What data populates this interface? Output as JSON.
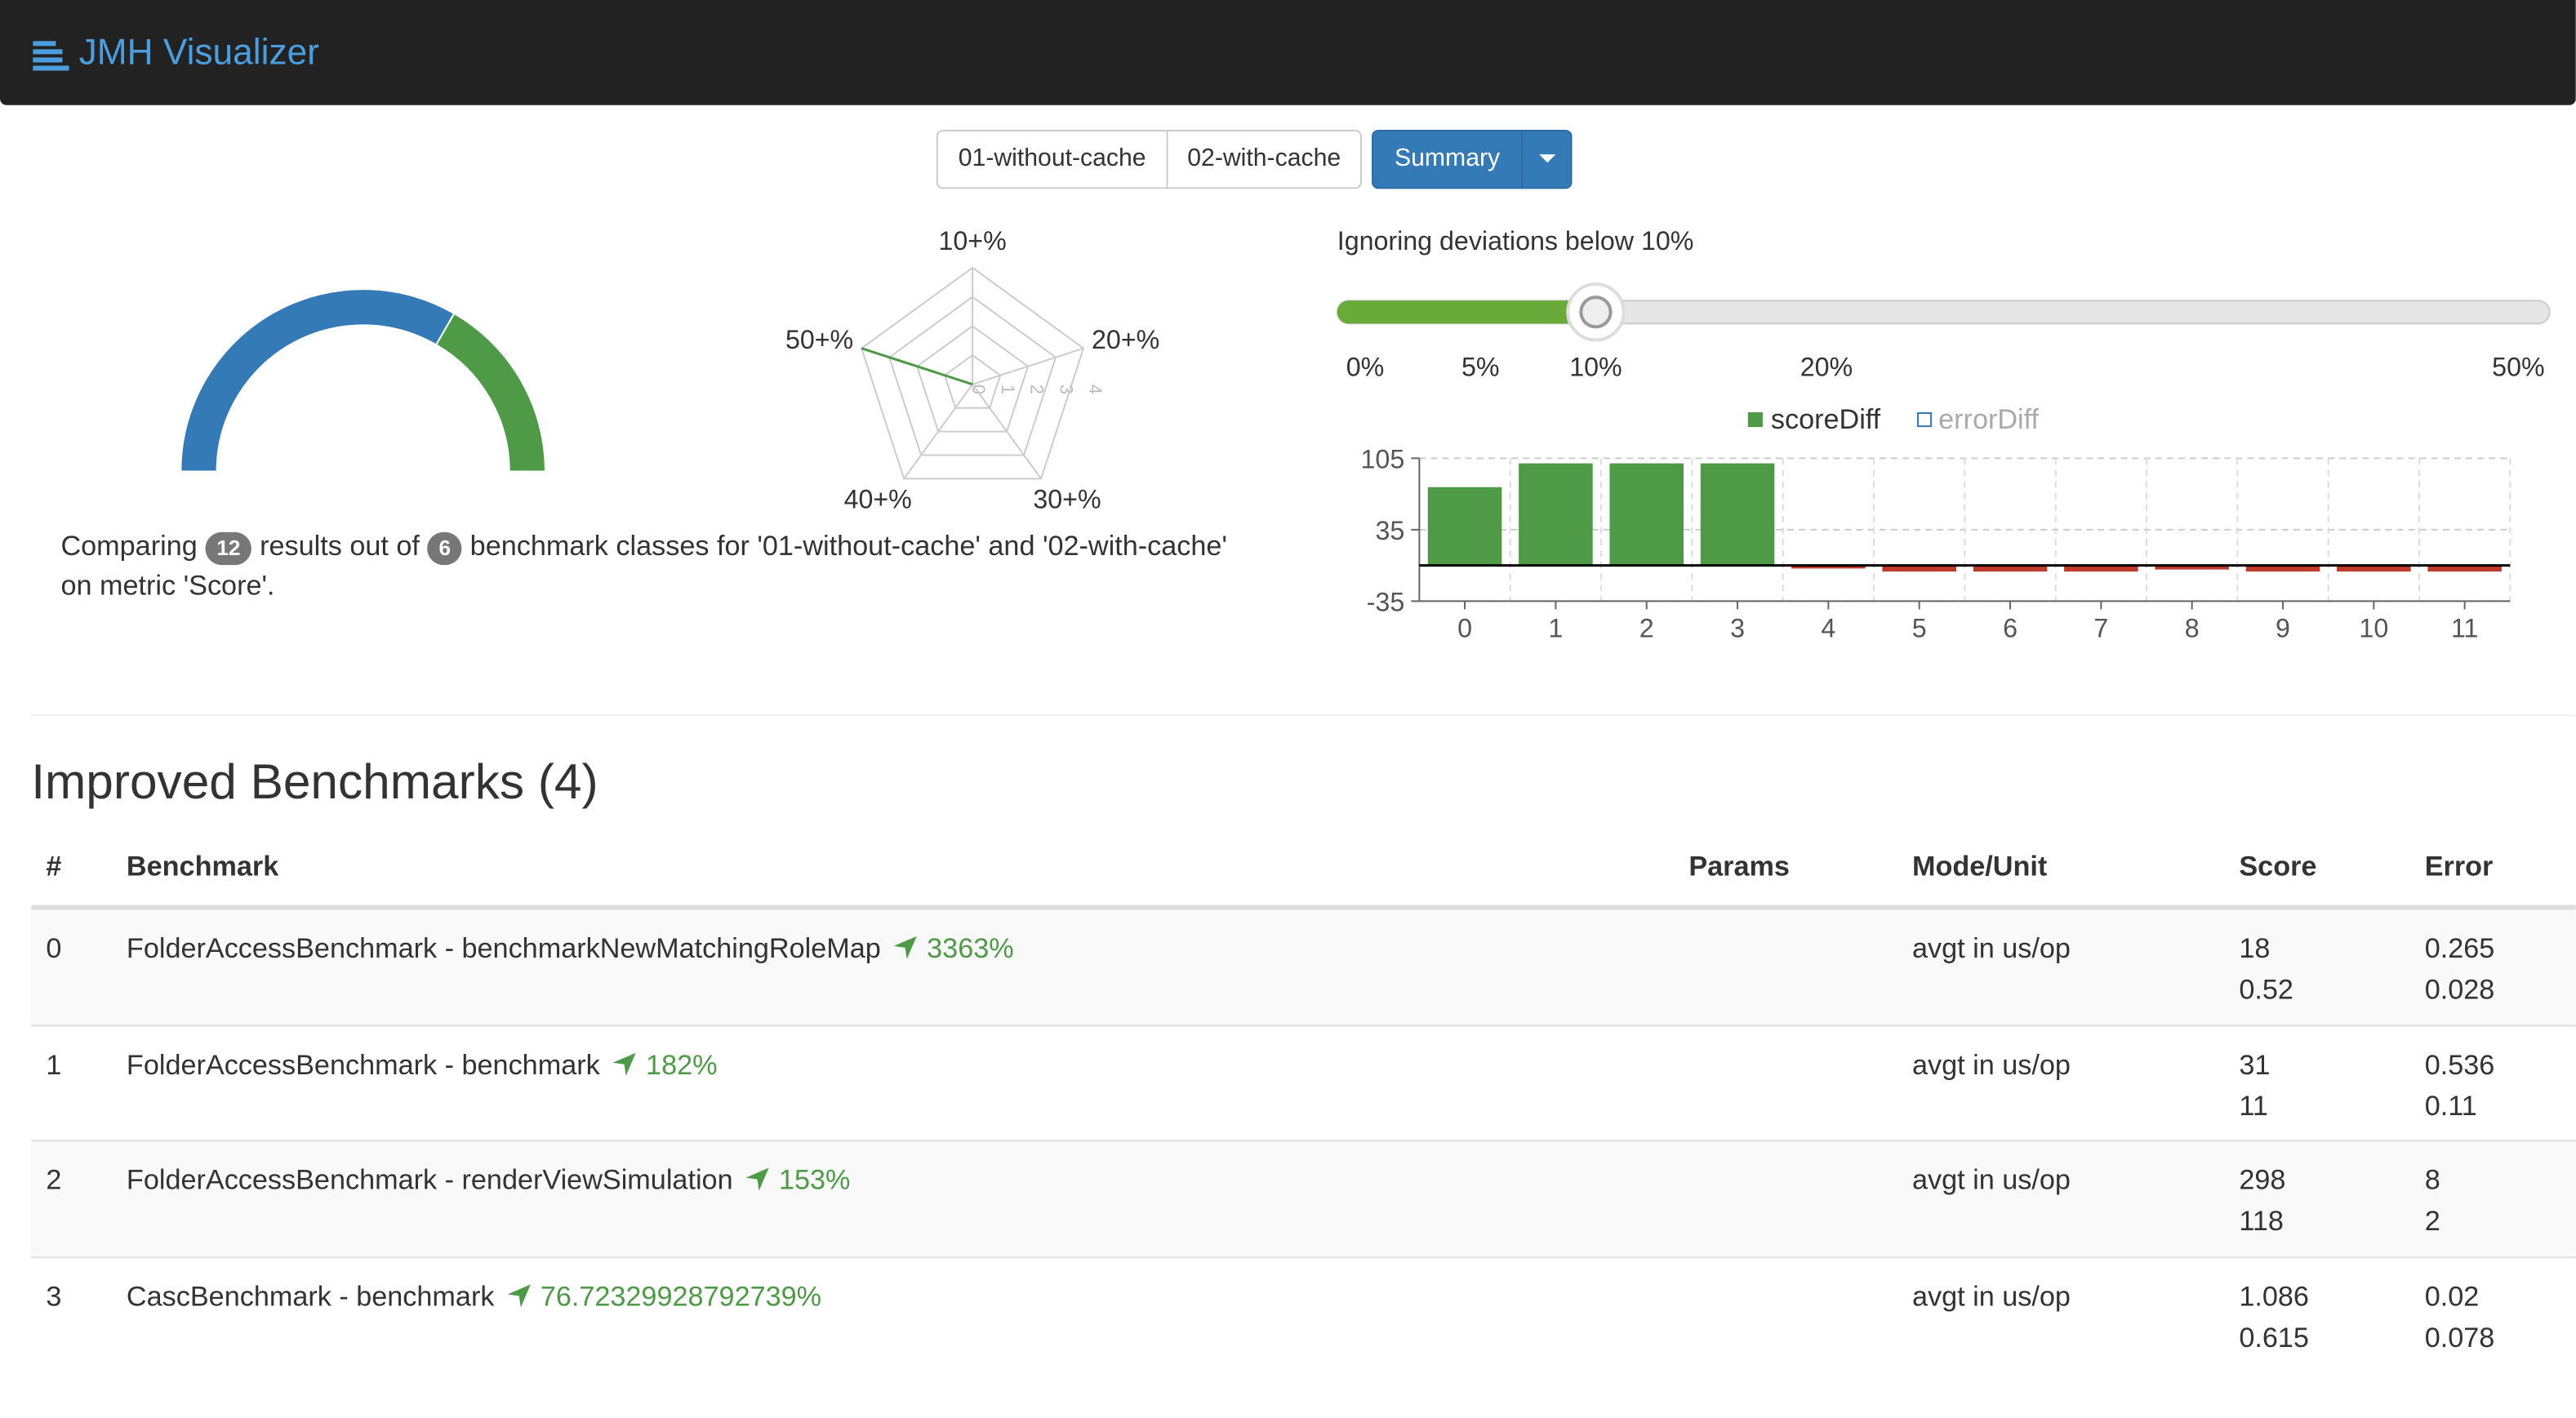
{
  "navbar": {
    "title": "JMH Visualizer"
  },
  "run_tabs": [
    "01-without-cache",
    "02-with-cache"
  ],
  "view_button": "Summary",
  "summary": {
    "text_1": "Comparing",
    "results": 12,
    "text_2": "results out of",
    "classes": 6,
    "text_3": "benchmark classes for '01-without-cache' and '02-with-cache' on metric 'Score'."
  },
  "charts": {
    "gauge": {
      "type": "gauge",
      "values": [
        8,
        4
      ],
      "colors": [
        "#337ab7",
        "#4e9a47"
      ]
    },
    "radar": {
      "type": "radar",
      "categories": [
        "10+%",
        "20+%",
        "30+%",
        "40+%",
        "50+%"
      ],
      "values": [
        0,
        0,
        0,
        0,
        4
      ],
      "rlim": [
        0,
        4
      ],
      "rticks": [
        0,
        1,
        2,
        3,
        4
      ],
      "color": "#4e9a47"
    },
    "slider": {
      "label": "Ignoring deviations below 10%",
      "value": 10,
      "xlim": [
        0,
        50
      ],
      "xticks": [
        {
          "value": 0,
          "label": "0%"
        },
        {
          "value": 5,
          "label": "5%"
        },
        {
          "value": 10,
          "label": "10%"
        },
        {
          "value": 20,
          "label": "20%"
        },
        {
          "value": 50,
          "label": "50%"
        }
      ],
      "color": "#6aaa3a"
    },
    "bar": {
      "type": "bar",
      "categories": [
        0,
        1,
        2,
        3,
        4,
        5,
        6,
        7,
        8,
        9,
        10,
        11
      ],
      "series": [
        {
          "name": "scoreDiff",
          "color": "#4e9a47",
          "negative_color": "#c0392b",
          "values": [
            76.72,
            100,
            100,
            100,
            -3,
            -6,
            -6,
            -6,
            -4,
            -6,
            -6,
            -6
          ]
        }
      ],
      "hidden_series": [
        {
          "name": "errorDiff",
          "color": "#337ab7"
        }
      ],
      "ylim": [
        -35,
        105
      ],
      "yticks": [
        -35,
        35,
        105
      ],
      "grid": true
    }
  },
  "section": {
    "title": "Improved Benchmarks (4)"
  },
  "table": {
    "headers": [
      "#",
      "Benchmark",
      "Params",
      "Mode/Unit",
      "Score",
      "Error"
    ],
    "rows": [
      {
        "index": 0,
        "benchmark": "FolderAccessBenchmark - benchmarkNewMatchingRoleMap",
        "change": "3363%",
        "mode": "avgt in us/op",
        "score": [
          18,
          0.52
        ],
        "error": [
          0.265,
          0.028
        ]
      },
      {
        "index": 1,
        "benchmark": "FolderAccessBenchmark - benchmark",
        "change": "182%",
        "mode": "avgt in us/op",
        "score": [
          31,
          11
        ],
        "error": [
          0.536,
          0.11
        ]
      },
      {
        "index": 2,
        "benchmark": "FolderAccessBenchmark - renderViewSimulation",
        "change": "153%",
        "mode": "avgt in us/op",
        "score": [
          298,
          118
        ],
        "error": [
          8,
          2
        ]
      },
      {
        "index": 3,
        "benchmark": "CascBenchmark - benchmark",
        "change": "76.72329928792739%",
        "mode": "avgt in us/op",
        "score": [
          1.086,
          0.615
        ],
        "error": [
          0.02,
          0.078
        ]
      }
    ]
  }
}
